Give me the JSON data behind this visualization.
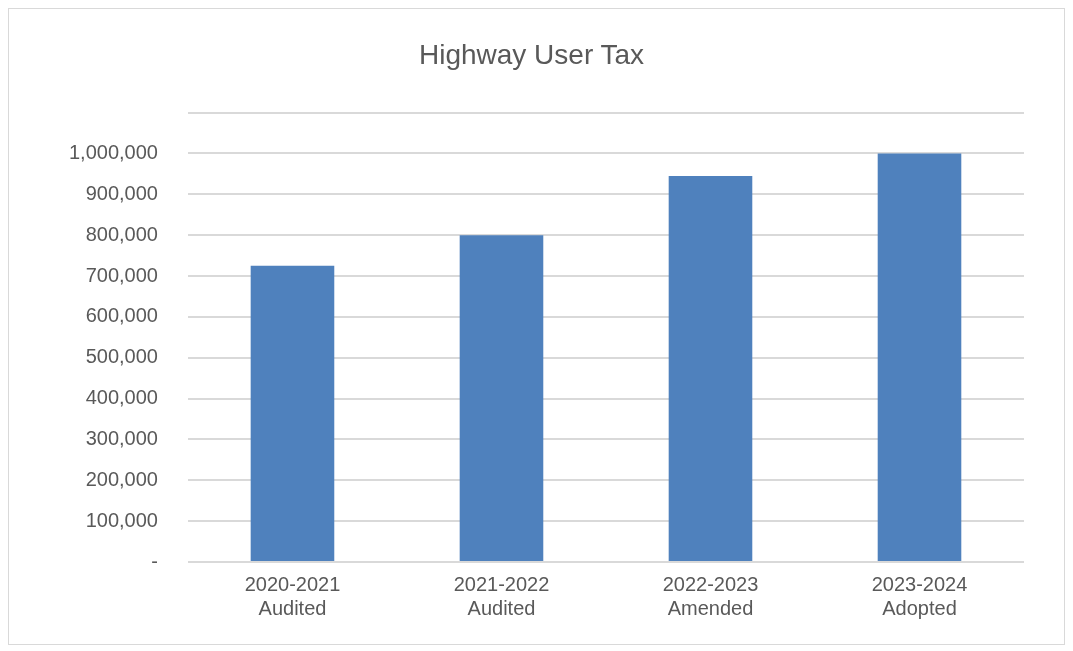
{
  "chart_data": {
    "type": "bar",
    "title": "Highway User Tax",
    "categories": [
      "2020-2021\nAudited",
      "2021-2022\nAudited",
      "2022-2023\nAmended",
      "2023-2024\nAdopted"
    ],
    "values": [
      725000,
      800000,
      945000,
      1000000
    ],
    "color": "#4f81bd",
    "ylim": [
      0,
      1100000
    ],
    "yticks": [
      {
        "value": 0,
        "label": "-"
      },
      {
        "value": 100000,
        "label": "100,000"
      },
      {
        "value": 200000,
        "label": "200,000"
      },
      {
        "value": 300000,
        "label": "300,000"
      },
      {
        "value": 400000,
        "label": "400,000"
      },
      {
        "value": 500000,
        "label": "500,000"
      },
      {
        "value": 600000,
        "label": "600,000"
      },
      {
        "value": 700000,
        "label": "700,000"
      },
      {
        "value": 800000,
        "label": "800,000"
      },
      {
        "value": 900000,
        "label": "900,000"
      },
      {
        "value": 1000000,
        "label": "1,000,000"
      },
      {
        "value": 1100000,
        "label": null
      }
    ],
    "grid": "y",
    "legend": false
  }
}
